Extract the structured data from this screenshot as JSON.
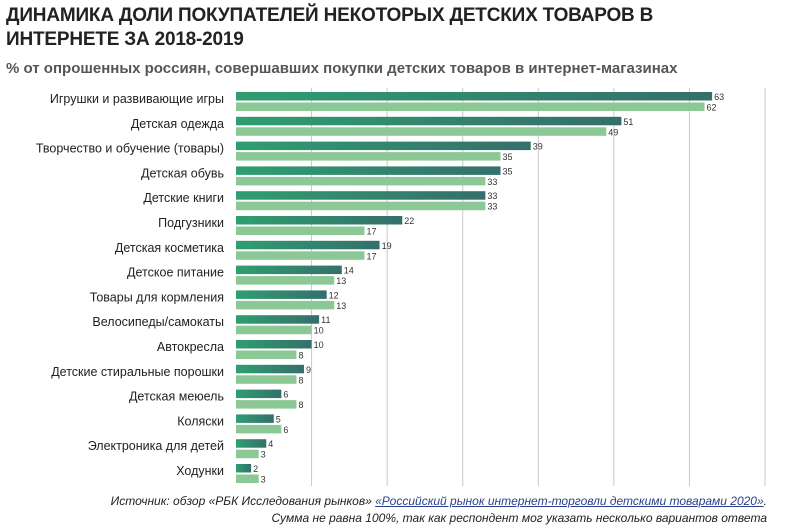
{
  "chart_data": {
    "type": "bar",
    "orientation": "horizontal",
    "title": "ДИНАМИКА ДОЛИ ПОКУПАТЕЛЕЙ НЕКОТОРЫХ ДЕТСКИХ ТОВАРОВ В ИНТЕРНЕТЕ ЗА 2018-2019",
    "subtitle": "% от опрошенных россиян, совершавших покупки детских товаров в интернет-магазинах",
    "categories": [
      "Игрушки и развивающие игры",
      "Детская одежда",
      "Творчество и обучение (товары)",
      "Детская обувь",
      "Детские книги",
      "Подгузники",
      "Детская косметика",
      "Детское питание",
      "Товары  для кормления",
      "Велосипеды/самокаты",
      "Автокресла",
      "Детские стиральные порошки",
      "Детская меюель",
      "Коляски",
      "Электроника для детей",
      "Ходунки"
    ],
    "series": [
      {
        "values": [
          63,
          51,
          39,
          35,
          33,
          22,
          19,
          14,
          12,
          11,
          10,
          9,
          6,
          5,
          4,
          2
        ],
        "color": "#2e7a67"
      },
      {
        "values": [
          62,
          49,
          35,
          33,
          33,
          17,
          17,
          13,
          13,
          10,
          8,
          8,
          8,
          6,
          3,
          3
        ],
        "color": "#8cc796"
      }
    ],
    "xlim": [
      0,
      70
    ],
    "grid": true,
    "data_labels": true,
    "legend": "none"
  },
  "footer": {
    "source_prefix": "Источник: обзор «РБК Исследования рынков» ",
    "source_link": "«Российский рынок интернет-торговли детскими товарами 2020»",
    "source_suffix": ".",
    "note": "Сумма не равна 100%, так как респондент мог указать несколько вариантов ответа"
  }
}
